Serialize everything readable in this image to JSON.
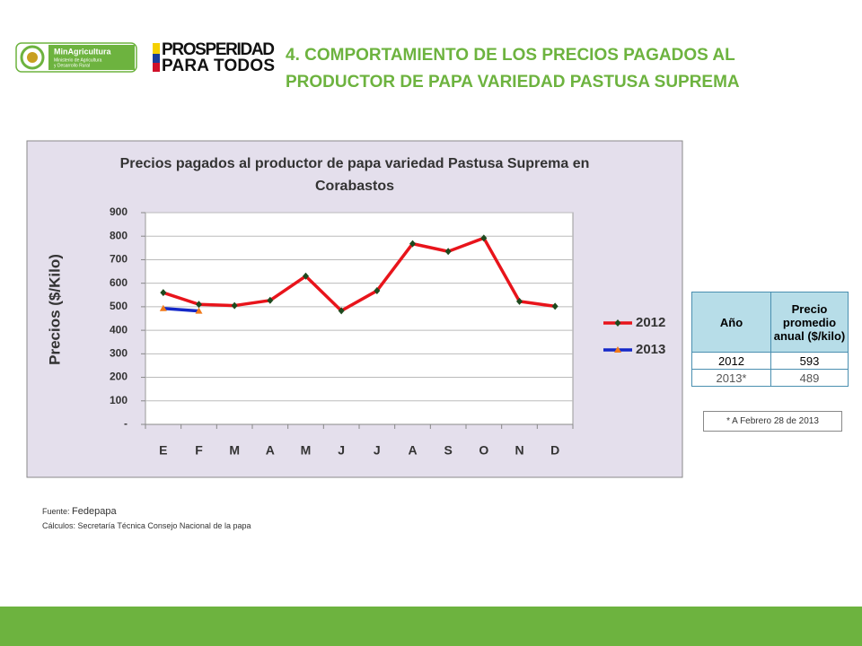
{
  "header": {
    "logo_name": "MinAgricultura",
    "logo_subtitle": [
      "Ministerio de Agricultura",
      "y Desarrollo Rural"
    ],
    "slogan": [
      "PROSPERIDAD",
      "PARA TODOS"
    ]
  },
  "heading": [
    "4. COMPORTAMIENTO DE LOS PRECIOS PAGADOS AL",
    "PRODUCTOR DE PAPA VARIEDAD PASTUSA SUPREMA"
  ],
  "chart_data": {
    "type": "line",
    "title": [
      "Precios pagados al productor de papa variedad Pastusa Suprema en",
      "Corabastos"
    ],
    "y_label": "Precios ($/Kilo)",
    "categories": [
      "E",
      "F",
      "M",
      "A",
      "M",
      "J",
      "J",
      "A",
      "S",
      "O",
      "N",
      "D"
    ],
    "series": [
      {
        "name": "2012",
        "color": "#e8141b",
        "marker": "diamond",
        "marker_color": "#1e4a1e",
        "values": [
          560,
          510,
          505,
          527,
          630,
          483,
          568,
          768,
          735,
          792,
          523,
          502
        ]
      },
      {
        "name": "2013",
        "color": "#1428c8",
        "marker": "triangle",
        "marker_color": "#f07a1a",
        "values": [
          493,
          482,
          null,
          null,
          null,
          null,
          null,
          null,
          null,
          null,
          null,
          null
        ]
      }
    ],
    "ylim": [
      0,
      900
    ],
    "yticks": [
      {
        "value": 0,
        "label": "-"
      },
      100,
      200,
      300,
      400,
      500,
      600,
      700,
      800,
      900
    ],
    "grid": true,
    "legend": "right"
  },
  "table": {
    "columns": [
      "Año",
      "Precio promedio anual ($/kilo)"
    ],
    "rows": [
      [
        "2012",
        "593"
      ],
      [
        "2013*",
        "489"
      ]
    ]
  },
  "note": "* A Febrero 28 de 2013",
  "source": {
    "label": "Fuente:",
    "name": "Fedepapa",
    "calc": "Cálculos: Secretaría Técnica Consejo Nacional de la papa"
  }
}
